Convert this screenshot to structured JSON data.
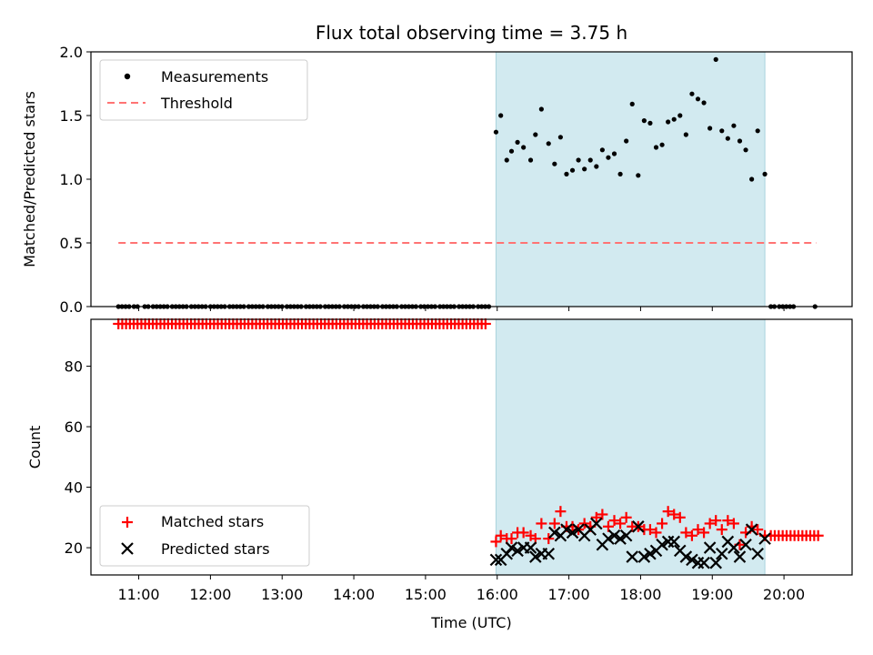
{
  "chart_data": [
    {
      "type": "scatter",
      "title": "Flux total observing time = 3.75 h",
      "ylabel": "Matched/Predicted stars",
      "ylim": [
        0,
        2.0
      ],
      "yticks": [
        "0.0",
        "0.5",
        "1.0",
        "1.5",
        "2.0"
      ],
      "ytick_values": [
        0,
        0.5,
        1.0,
        1.5,
        2.0
      ],
      "xlim": [
        "10:20",
        "20:57"
      ],
      "shaded_interval": [
        "15:59",
        "19:44"
      ],
      "shade_color": "#d2eaf0",
      "grid": false,
      "legend_position": "upper left",
      "legend": [
        {
          "label": "Measurements",
          "marker": "dot",
          "color": "#000000"
        },
        {
          "label": "Threshold",
          "marker": "dashed-line",
          "color": "#ff7373"
        }
      ],
      "threshold": {
        "value": 0.5,
        "x_start": "10:43",
        "x_end": "20:27",
        "color": "#ff7373"
      },
      "series": [
        {
          "name": "Measurements",
          "color": "#000000",
          "points": [
            [
              "10:43",
              0
            ],
            [
              "10:46",
              0
            ],
            [
              "10:49",
              0
            ],
            [
              "10:52",
              0
            ],
            [
              "10:56",
              0
            ],
            [
              "10:59",
              0
            ],
            [
              "11:05",
              0
            ],
            [
              "11:08",
              0
            ],
            [
              "11:12",
              0
            ],
            [
              "11:15",
              0
            ],
            [
              "11:18",
              0
            ],
            [
              "11:21",
              0
            ],
            [
              "11:24",
              0
            ],
            [
              "11:28",
              0
            ],
            [
              "11:31",
              0
            ],
            [
              "11:34",
              0
            ],
            [
              "11:37",
              0
            ],
            [
              "11:40",
              0
            ],
            [
              "11:44",
              0
            ],
            [
              "11:47",
              0
            ],
            [
              "11:50",
              0
            ],
            [
              "11:53",
              0
            ],
            [
              "11:56",
              0
            ],
            [
              "12:00",
              0
            ],
            [
              "12:03",
              0
            ],
            [
              "12:06",
              0
            ],
            [
              "12:09",
              0
            ],
            [
              "12:12",
              0
            ],
            [
              "12:16",
              0
            ],
            [
              "12:19",
              0
            ],
            [
              "12:22",
              0
            ],
            [
              "12:25",
              0
            ],
            [
              "12:28",
              0
            ],
            [
              "12:32",
              0
            ],
            [
              "12:35",
              0
            ],
            [
              "12:38",
              0
            ],
            [
              "12:41",
              0
            ],
            [
              "12:44",
              0
            ],
            [
              "12:48",
              0
            ],
            [
              "12:51",
              0
            ],
            [
              "12:54",
              0
            ],
            [
              "12:57",
              0
            ],
            [
              "13:00",
              0
            ],
            [
              "13:04",
              0
            ],
            [
              "13:07",
              0
            ],
            [
              "13:10",
              0
            ],
            [
              "13:13",
              0
            ],
            [
              "13:16",
              0
            ],
            [
              "13:20",
              0
            ],
            [
              "13:23",
              0
            ],
            [
              "13:26",
              0
            ],
            [
              "13:29",
              0
            ],
            [
              "13:32",
              0
            ],
            [
              "13:36",
              0
            ],
            [
              "13:39",
              0
            ],
            [
              "13:42",
              0
            ],
            [
              "13:45",
              0
            ],
            [
              "13:48",
              0
            ],
            [
              "13:52",
              0
            ],
            [
              "13:55",
              0
            ],
            [
              "13:58",
              0
            ],
            [
              "14:01",
              0
            ],
            [
              "14:04",
              0
            ],
            [
              "14:08",
              0
            ],
            [
              "14:11",
              0
            ],
            [
              "14:14",
              0
            ],
            [
              "14:17",
              0
            ],
            [
              "14:20",
              0
            ],
            [
              "14:24",
              0
            ],
            [
              "14:27",
              0
            ],
            [
              "14:30",
              0
            ],
            [
              "14:33",
              0
            ],
            [
              "14:36",
              0
            ],
            [
              "14:40",
              0
            ],
            [
              "14:43",
              0
            ],
            [
              "14:46",
              0
            ],
            [
              "14:49",
              0
            ],
            [
              "14:52",
              0
            ],
            [
              "14:56",
              0
            ],
            [
              "14:59",
              0
            ],
            [
              "15:02",
              0
            ],
            [
              "15:05",
              0
            ],
            [
              "15:08",
              0
            ],
            [
              "15:12",
              0
            ],
            [
              "15:15",
              0
            ],
            [
              "15:18",
              0
            ],
            [
              "15:21",
              0
            ],
            [
              "15:24",
              0
            ],
            [
              "15:28",
              0
            ],
            [
              "15:31",
              0
            ],
            [
              "15:34",
              0
            ],
            [
              "15:37",
              0
            ],
            [
              "15:40",
              0
            ],
            [
              "15:44",
              0
            ],
            [
              "15:47",
              0
            ],
            [
              "15:50",
              0
            ],
            [
              "15:53",
              0
            ],
            [
              "15:59",
              1.37
            ],
            [
              "16:03",
              1.5
            ],
            [
              "16:08",
              1.15
            ],
            [
              "16:12",
              1.22
            ],
            [
              "16:17",
              1.29
            ],
            [
              "16:22",
              1.25
            ],
            [
              "16:28",
              1.15
            ],
            [
              "16:32",
              1.35
            ],
            [
              "16:37",
              1.55
            ],
            [
              "16:43",
              1.28
            ],
            [
              "16:48",
              1.12
            ],
            [
              "16:53",
              1.33
            ],
            [
              "16:58",
              1.04
            ],
            [
              "17:03",
              1.07
            ],
            [
              "17:08",
              1.15
            ],
            [
              "17:13",
              1.08
            ],
            [
              "17:18",
              1.15
            ],
            [
              "17:23",
              1.1
            ],
            [
              "17:28",
              1.23
            ],
            [
              "17:33",
              1.17
            ],
            [
              "17:38",
              1.2
            ],
            [
              "17:43",
              1.04
            ],
            [
              "17:48",
              1.3
            ],
            [
              "17:53",
              1.59
            ],
            [
              "17:58",
              1.03
            ],
            [
              "18:03",
              1.46
            ],
            [
              "18:08",
              1.44
            ],
            [
              "18:13",
              1.25
            ],
            [
              "18:18",
              1.27
            ],
            [
              "18:23",
              1.45
            ],
            [
              "18:28",
              1.47
            ],
            [
              "18:33",
              1.5
            ],
            [
              "18:38",
              1.35
            ],
            [
              "18:43",
              1.67
            ],
            [
              "18:48",
              1.63
            ],
            [
              "18:53",
              1.6
            ],
            [
              "18:58",
              1.4
            ],
            [
              "19:03",
              1.94
            ],
            [
              "19:08",
              1.38
            ],
            [
              "19:13",
              1.32
            ],
            [
              "19:18",
              1.42
            ],
            [
              "19:23",
              1.3
            ],
            [
              "19:28",
              1.23
            ],
            [
              "19:33",
              1.0
            ],
            [
              "19:38",
              1.38
            ],
            [
              "19:44",
              1.04
            ],
            [
              "19:49",
              0
            ],
            [
              "19:52",
              0
            ],
            [
              "19:56",
              0
            ],
            [
              "19:59",
              0
            ],
            [
              "20:02",
              0
            ],
            [
              "20:05",
              0
            ],
            [
              "20:08",
              0
            ],
            [
              "20:26",
              0
            ]
          ]
        }
      ]
    },
    {
      "type": "scatter",
      "xlabel": "Time (UTC)",
      "ylabel": "Count",
      "ylim": [
        11,
        95.5
      ],
      "yticks": [
        "20",
        "40",
        "60",
        "80"
      ],
      "ytick_values": [
        20,
        40,
        60,
        80
      ],
      "xlim": [
        "10:20",
        "20:57"
      ],
      "xticks": [
        "11:00",
        "12:00",
        "13:00",
        "14:00",
        "15:00",
        "16:00",
        "17:00",
        "18:00",
        "19:00",
        "20:00"
      ],
      "shaded_interval": [
        "15:59",
        "19:44"
      ],
      "shade_color": "#d2eaf0",
      "grid": false,
      "legend_position": "lower left",
      "legend": [
        {
          "label": "Matched stars",
          "marker": "plus",
          "color": "#ff0000"
        },
        {
          "label": "Predicted stars",
          "marker": "x",
          "color": "#000000"
        }
      ],
      "series": [
        {
          "name": "Matched stars",
          "color": "#ff0000",
          "constant_runs": [
            {
              "value": 94,
              "start": "10:43",
              "end": "15:53",
              "step_minutes": 3.2
            },
            {
              "value": 24,
              "start": "19:49",
              "end": "20:29",
              "step_minutes": 3.3
            }
          ],
          "points": [
            [
              "15:59",
              22
            ],
            [
              "16:03",
              24
            ],
            [
              "16:08",
              23
            ],
            [
              "16:12",
              23
            ],
            [
              "16:17",
              25
            ],
            [
              "16:22",
              25
            ],
            [
              "16:28",
              24
            ],
            [
              "16:32",
              23
            ],
            [
              "16:37",
              28
            ],
            [
              "16:43",
              23
            ],
            [
              "16:48",
              28
            ],
            [
              "16:53",
              32
            ],
            [
              "16:58",
              27
            ],
            [
              "17:03",
              27
            ],
            [
              "17:08",
              26
            ],
            [
              "17:13",
              28
            ],
            [
              "17:18",
              27
            ],
            [
              "17:23",
              30
            ],
            [
              "17:28",
              31
            ],
            [
              "17:33",
              27
            ],
            [
              "17:38",
              29
            ],
            [
              "17:43",
              28
            ],
            [
              "17:48",
              30
            ],
            [
              "17:53",
              27
            ],
            [
              "17:58",
              27
            ],
            [
              "18:03",
              26
            ],
            [
              "18:08",
              26
            ],
            [
              "18:13",
              25
            ],
            [
              "18:18",
              28
            ],
            [
              "18:23",
              32
            ],
            [
              "18:28",
              31
            ],
            [
              "18:33",
              30
            ],
            [
              "18:38",
              25
            ],
            [
              "18:43",
              24
            ],
            [
              "18:48",
              26
            ],
            [
              "18:53",
              25
            ],
            [
              "18:58",
              28
            ],
            [
              "19:03",
              29
            ],
            [
              "19:08",
              26
            ],
            [
              "19:13",
              29
            ],
            [
              "19:18",
              28
            ],
            [
              "19:23",
              21
            ],
            [
              "19:28",
              25
            ],
            [
              "19:33",
              27
            ],
            [
              "19:38",
              26
            ],
            [
              "19:44",
              24
            ]
          ]
        },
        {
          "name": "Predicted stars",
          "color": "#000000",
          "points": [
            [
              "15:59",
              16
            ],
            [
              "16:03",
              16
            ],
            [
              "16:08",
              18
            ],
            [
              "16:12",
              20
            ],
            [
              "16:17",
              19
            ],
            [
              "16:22",
              20
            ],
            [
              "16:28",
              20
            ],
            [
              "16:32",
              17
            ],
            [
              "16:37",
              18
            ],
            [
              "16:43",
              18
            ],
            [
              "16:48",
              25
            ],
            [
              "16:53",
              24
            ],
            [
              "16:58",
              26
            ],
            [
              "17:03",
              25
            ],
            [
              "17:08",
              26
            ],
            [
              "17:13",
              24
            ],
            [
              "17:18",
              26
            ],
            [
              "17:23",
              28
            ],
            [
              "17:28",
              21
            ],
            [
              "17:33",
              23
            ],
            [
              "17:38",
              24
            ],
            [
              "17:43",
              23
            ],
            [
              "17:48",
              24
            ],
            [
              "17:53",
              17
            ],
            [
              "17:58",
              27
            ],
            [
              "18:03",
              17
            ],
            [
              "18:08",
              18
            ],
            [
              "18:13",
              19
            ],
            [
              "18:18",
              21
            ],
            [
              "18:23",
              22
            ],
            [
              "18:28",
              22
            ],
            [
              "18:33",
              19
            ],
            [
              "18:38",
              17
            ],
            [
              "18:43",
              16
            ],
            [
              "18:48",
              15
            ],
            [
              "18:53",
              15
            ],
            [
              "18:58",
              20
            ],
            [
              "19:03",
              15
            ],
            [
              "19:08",
              18
            ],
            [
              "19:13",
              22
            ],
            [
              "19:18",
              20
            ],
            [
              "19:23",
              17
            ],
            [
              "19:28",
              21
            ],
            [
              "19:33",
              26
            ],
            [
              "19:38",
              18
            ],
            [
              "19:44",
              23
            ]
          ]
        }
      ]
    }
  ]
}
